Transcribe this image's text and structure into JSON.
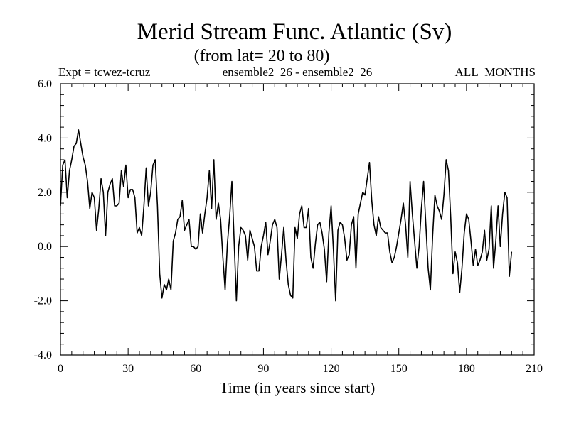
{
  "chart_data": {
    "type": "line",
    "title": "Merid Stream Func. Atlantic (Sv)",
    "subtitle": "(from lat= 20 to 80)",
    "header_left": "Expt = tcwez-tcruz",
    "header_center": "ensemble2_26 - ensemble2_26",
    "header_right": "ALL_MONTHS",
    "xlabel": "Time (in years since start)",
    "ylabel": "",
    "xlim": [
      0,
      210
    ],
    "ylim": [
      -4.0,
      6.0
    ],
    "x_ticks": [
      0,
      30,
      60,
      90,
      120,
      150,
      180,
      210
    ],
    "x_tick_labels": [
      "0",
      "30",
      "60",
      "90",
      "120",
      "150",
      "180",
      "210"
    ],
    "y_ticks": [
      -4.0,
      -2.0,
      0.0,
      2.0,
      4.0,
      6.0
    ],
    "y_tick_labels": [
      "-4.0",
      "-2.0",
      "0.0",
      "2.0",
      "4.0",
      "6.0"
    ],
    "grid": false,
    "series": [
      {
        "name": "Merid Stream Func. Atlantic",
        "x_start": 0,
        "x_step": 1,
        "values": [
          1.5,
          3.0,
          3.2,
          1.8,
          2.8,
          3.2,
          3.7,
          3.8,
          4.3,
          3.8,
          3.3,
          3.0,
          2.4,
          1.4,
          2.0,
          1.8,
          0.6,
          1.4,
          2.5,
          2.0,
          0.4,
          2.0,
          2.3,
          2.5,
          1.5,
          1.5,
          1.6,
          2.8,
          2.2,
          3.0,
          1.8,
          2.1,
          2.1,
          1.8,
          0.5,
          0.7,
          0.4,
          1.5,
          2.9,
          1.5,
          2.0,
          3.0,
          3.2,
          1.5,
          -1.0,
          -1.9,
          -1.4,
          -1.6,
          -1.2,
          -1.6,
          0.2,
          0.5,
          1.0,
          1.1,
          1.7,
          0.6,
          0.8,
          1.0,
          0.0,
          0.0,
          -0.1,
          0.0,
          1.2,
          0.5,
          1.2,
          1.8,
          2.8,
          1.4,
          3.2,
          1.0,
          1.6,
          1.0,
          -0.4,
          -1.6,
          0.1,
          1.1,
          2.4,
          0.2,
          -2.0,
          0.0,
          0.7,
          0.6,
          0.4,
          -0.5,
          0.6,
          0.3,
          0.0,
          -0.9,
          -0.9,
          0.0,
          0.4,
          0.9,
          -0.3,
          0.2,
          0.8,
          1.0,
          0.7,
          -1.2,
          -0.3,
          0.7,
          -0.5,
          -1.4,
          -1.8,
          -1.9,
          0.7,
          0.3,
          1.2,
          1.5,
          0.7,
          0.7,
          1.4,
          -0.4,
          -0.8,
          0.1,
          0.8,
          0.9,
          0.5,
          -0.1,
          -1.3,
          0.5,
          1.5,
          -0.1,
          -2.0,
          0.6,
          0.9,
          0.8,
          0.3,
          -0.5,
          -0.3,
          0.8,
          1.1,
          -0.8,
          1.2,
          1.6,
          2.0,
          1.9,
          2.5,
          3.1,
          1.7,
          0.8,
          0.4,
          1.1,
          0.7,
          0.6,
          0.5,
          0.5,
          -0.2,
          -0.6,
          -0.4,
          0.0,
          0.5,
          1.0,
          1.6,
          0.8,
          -0.4,
          2.4,
          1.2,
          0.2,
          -0.8,
          0.0,
          1.4,
          2.4,
          0.8,
          -0.8,
          -1.6,
          0.4,
          1.9,
          1.5,
          1.3,
          1.0,
          1.9,
          3.2,
          2.8,
          1.1,
          -1.0,
          -0.2,
          -0.6,
          -1.7,
          -0.8,
          0.5,
          1.2,
          1.0,
          0.2,
          -0.7,
          -0.1,
          -0.7,
          -0.5,
          -0.2,
          0.6,
          -0.5,
          -0.1,
          1.5,
          -0.8,
          0.2,
          1.5,
          0.0,
          1.2,
          2.0,
          1.8,
          -1.1,
          -0.2
        ]
      }
    ]
  }
}
